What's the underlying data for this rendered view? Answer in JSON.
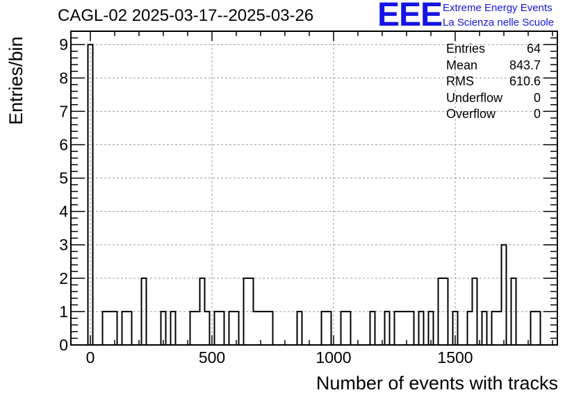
{
  "header": {
    "title": "CAGL-02 2025-03-17--2025-03-26",
    "logo_text": "EEE",
    "logo_line1": "Extreme Energy Events",
    "logo_line2": "La Scienza nelle Scuole"
  },
  "stats": [
    {
      "label": "Entries",
      "value": "64"
    },
    {
      "label": "Mean",
      "value": "843.7"
    },
    {
      "label": "RMS",
      "value": "610.6"
    },
    {
      "label": "Underflow",
      "value": "0"
    },
    {
      "label": "Overflow",
      "value": "0"
    }
  ],
  "colors": {
    "histogram": "#000000",
    "grid": "#9a9a9a",
    "logo": "#1414e6"
  },
  "chart_data": {
    "type": "bar",
    "histogram": true,
    "title": "CAGL-02 2025-03-17--2025-03-26",
    "xlabel": "Number of events with tracks",
    "ylabel": "Entries/bin",
    "xlim": [
      -80,
      1920
    ],
    "ylim": [
      0,
      9.4
    ],
    "grid": true,
    "bin_width": 20,
    "x_ticks": [
      0,
      500,
      1000,
      1500
    ],
    "x_tick_labels": [
      "0",
      "500",
      "1000",
      "1500"
    ],
    "y_ticks": [
      0,
      1,
      2,
      3,
      4,
      5,
      6,
      7,
      8,
      9
    ],
    "y_tick_labels": [
      "0",
      "1",
      "2",
      "3",
      "4",
      "5",
      "6",
      "7",
      "8",
      "9"
    ],
    "bins": [
      {
        "x_low": -10,
        "x_high": 10,
        "count": 9
      },
      {
        "x_low": 50,
        "x_high": 110,
        "count": 1
      },
      {
        "x_low": 130,
        "x_high": 170,
        "count": 1
      },
      {
        "x_low": 210,
        "x_high": 230,
        "count": 2
      },
      {
        "x_low": 290,
        "x_high": 310,
        "count": 1
      },
      {
        "x_low": 330,
        "x_high": 350,
        "count": 1
      },
      {
        "x_low": 410,
        "x_high": 450,
        "count": 1
      },
      {
        "x_low": 450,
        "x_high": 470,
        "count": 2
      },
      {
        "x_low": 470,
        "x_high": 490,
        "count": 1
      },
      {
        "x_low": 510,
        "x_high": 550,
        "count": 1
      },
      {
        "x_low": 570,
        "x_high": 610,
        "count": 1
      },
      {
        "x_low": 630,
        "x_high": 670,
        "count": 2
      },
      {
        "x_low": 670,
        "x_high": 750,
        "count": 1
      },
      {
        "x_low": 850,
        "x_high": 870,
        "count": 1
      },
      {
        "x_low": 950,
        "x_high": 990,
        "count": 1
      },
      {
        "x_low": 1030,
        "x_high": 1070,
        "count": 1
      },
      {
        "x_low": 1150,
        "x_high": 1170,
        "count": 1
      },
      {
        "x_low": 1210,
        "x_high": 1230,
        "count": 1
      },
      {
        "x_low": 1250,
        "x_high": 1330,
        "count": 1
      },
      {
        "x_low": 1350,
        "x_high": 1370,
        "count": 1
      },
      {
        "x_low": 1390,
        "x_high": 1410,
        "count": 1
      },
      {
        "x_low": 1430,
        "x_high": 1470,
        "count": 2
      },
      {
        "x_low": 1490,
        "x_high": 1510,
        "count": 1
      },
      {
        "x_low": 1550,
        "x_high": 1570,
        "count": 1
      },
      {
        "x_low": 1570,
        "x_high": 1590,
        "count": 2
      },
      {
        "x_low": 1610,
        "x_high": 1630,
        "count": 1
      },
      {
        "x_low": 1650,
        "x_high": 1670,
        "count": 1
      },
      {
        "x_low": 1670,
        "x_high": 1690,
        "count": 1
      },
      {
        "x_low": 1690,
        "x_high": 1710,
        "count": 3
      },
      {
        "x_low": 1730,
        "x_high": 1750,
        "count": 2
      },
      {
        "x_low": 1810,
        "x_high": 1850,
        "count": 1
      }
    ]
  }
}
